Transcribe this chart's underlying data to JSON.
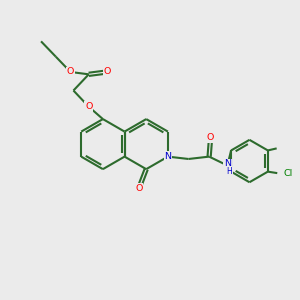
{
  "bg_color": "#ebebeb",
  "bond_color": "#2d6b2d",
  "o_color": "#ff0000",
  "n_color": "#0000cc",
  "cl_color": "#008000",
  "line_width": 1.5,
  "fig_size": [
    3.0,
    3.0
  ],
  "dpi": 100,
  "xlim": [
    0,
    10
  ],
  "ylim": [
    0,
    10
  ]
}
